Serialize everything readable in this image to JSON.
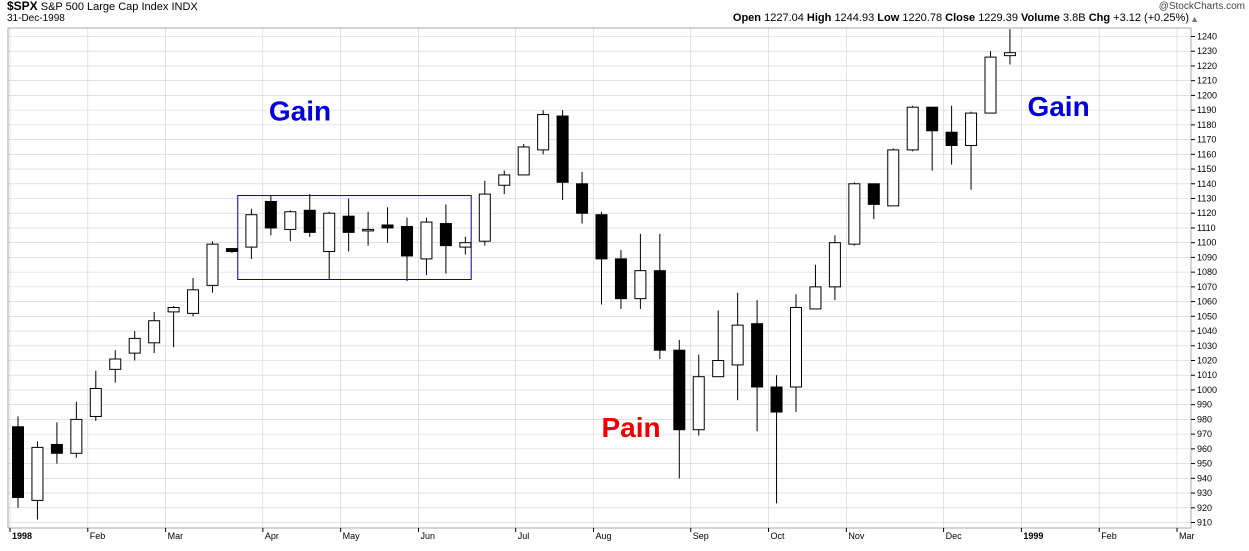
{
  "header": {
    "symbol": "$SPX",
    "name": "S&P 500 Large Cap Index",
    "exchange": "INDX",
    "date": "31-Dec-1998",
    "copyright": "@StockCharts.com",
    "open_label": "Open",
    "open": "1227.04",
    "high_label": "High",
    "high": "1244.93",
    "low_label": "Low",
    "low": "1220.78",
    "close_label": "Close",
    "close": "1229.39",
    "volume_label": "Volume",
    "volume": "3.8B",
    "chg_label": "Chg",
    "chg": "+3.12 (+0.25%)"
  },
  "colors": {
    "up_fill": "#ffffff",
    "down_fill": "#000000",
    "box": "#0000aa",
    "gain": "#0000dd",
    "pain": "#ee0000",
    "grid": "#d0d0d0"
  },
  "chart_data": {
    "type": "candlestick",
    "title": "$SPX S&P 500 Large Cap Index INDX",
    "interval": "weekly",
    "ylim": [
      910,
      1248
    ],
    "yticks": [
      910,
      920,
      930,
      940,
      950,
      960,
      970,
      980,
      990,
      1000,
      1010,
      1020,
      1030,
      1040,
      1050,
      1060,
      1070,
      1080,
      1090,
      1100,
      1110,
      1120,
      1130,
      1140,
      1150,
      1160,
      1170,
      1180,
      1190,
      1200,
      1210,
      1220,
      1230,
      1240
    ],
    "xlabels": [
      {
        "label": "1998",
        "week": 0,
        "bold": true
      },
      {
        "label": "Feb",
        "week": 4
      },
      {
        "label": "Mar",
        "week": 8
      },
      {
        "label": "Apr",
        "week": 13
      },
      {
        "label": "May",
        "week": 17
      },
      {
        "label": "Jun",
        "week": 21
      },
      {
        "label": "Jul",
        "week": 26
      },
      {
        "label": "Aug",
        "week": 30
      },
      {
        "label": "Sep",
        "week": 35
      },
      {
        "label": "Oct",
        "week": 39
      },
      {
        "label": "Nov",
        "week": 43
      },
      {
        "label": "Dec",
        "week": 48
      },
      {
        "label": "1999",
        "week": 52,
        "bold": true
      },
      {
        "label": "Feb",
        "week": 56
      },
      {
        "label": "Mar",
        "week": 60
      }
    ],
    "candles": [
      {
        "o": 975,
        "h": 982,
        "l": 920,
        "c": 927
      },
      {
        "o": 925,
        "h": 965,
        "l": 912,
        "c": 961
      },
      {
        "o": 963,
        "h": 978,
        "l": 950,
        "c": 957
      },
      {
        "o": 957,
        "h": 992,
        "l": 954,
        "c": 980
      },
      {
        "o": 982,
        "h": 1013,
        "l": 979,
        "c": 1001
      },
      {
        "o": 1014,
        "h": 1027,
        "l": 1005,
        "c": 1021
      },
      {
        "o": 1025,
        "h": 1040,
        "l": 1020,
        "c": 1035
      },
      {
        "o": 1032,
        "h": 1053,
        "l": 1025,
        "c": 1047
      },
      {
        "o": 1053,
        "h": 1057,
        "l": 1029,
        "c": 1056
      },
      {
        "o": 1052,
        "h": 1076,
        "l": 1050,
        "c": 1068
      },
      {
        "o": 1071,
        "h": 1101,
        "l": 1066,
        "c": 1099
      },
      {
        "o": 1096,
        "h": 1096,
        "l": 1093,
        "c": 1094
      },
      {
        "o": 1097,
        "h": 1123,
        "l": 1089,
        "c": 1119
      },
      {
        "o": 1128,
        "h": 1132,
        "l": 1105,
        "c": 1110
      },
      {
        "o": 1109,
        "h": 1122,
        "l": 1101,
        "c": 1121
      },
      {
        "o": 1122,
        "h": 1133,
        "l": 1104,
        "c": 1107
      },
      {
        "o": 1094,
        "h": 1121,
        "l": 1075,
        "c": 1120
      },
      {
        "o": 1118,
        "h": 1130,
        "l": 1094,
        "c": 1107
      },
      {
        "o": 1109,
        "h": 1121,
        "l": 1098,
        "c": 1109
      },
      {
        "o": 1112,
        "h": 1124,
        "l": 1100,
        "c": 1110
      },
      {
        "o": 1111,
        "h": 1117,
        "l": 1074,
        "c": 1091
      },
      {
        "o": 1089,
        "h": 1117,
        "l": 1078,
        "c": 1114
      },
      {
        "o": 1113,
        "h": 1126,
        "l": 1079,
        "c": 1098
      },
      {
        "o": 1097,
        "h": 1104,
        "l": 1092,
        "c": 1100
      },
      {
        "o": 1101,
        "h": 1142,
        "l": 1098,
        "c": 1133
      },
      {
        "o": 1139,
        "h": 1149,
        "l": 1133,
        "c": 1146
      },
      {
        "o": 1146,
        "h": 1167,
        "l": 1146,
        "c": 1165
      },
      {
        "o": 1163,
        "h": 1190,
        "l": 1160,
        "c": 1187
      },
      {
        "o": 1186,
        "h": 1190,
        "l": 1129,
        "c": 1141
      },
      {
        "o": 1140,
        "h": 1148,
        "l": 1113,
        "c": 1120
      },
      {
        "o": 1119,
        "h": 1121,
        "l": 1058,
        "c": 1089
      },
      {
        "o": 1089,
        "h": 1095,
        "l": 1055,
        "c": 1062
      },
      {
        "o": 1062,
        "h": 1106,
        "l": 1055,
        "c": 1081
      },
      {
        "o": 1081,
        "h": 1106,
        "l": 1021,
        "c": 1027
      },
      {
        "o": 1027,
        "h": 1034,
        "l": 940,
        "c": 973
      },
      {
        "o": 973,
        "h": 1024,
        "l": 969,
        "c": 1009
      },
      {
        "o": 1009,
        "h": 1054,
        "l": 1009,
        "c": 1020
      },
      {
        "o": 1017,
        "h": 1066,
        "l": 993,
        "c": 1044
      },
      {
        "o": 1045,
        "h": 1061,
        "l": 972,
        "c": 1002
      },
      {
        "o": 1002,
        "h": 1010,
        "l": 923,
        "c": 985
      },
      {
        "o": 1002,
        "h": 1065,
        "l": 985,
        "c": 1056
      },
      {
        "o": 1055,
        "h": 1085,
        "l": 1055,
        "c": 1070
      },
      {
        "o": 1070,
        "h": 1105,
        "l": 1061,
        "c": 1100
      },
      {
        "o": 1099,
        "h": 1141,
        "l": 1098,
        "c": 1140
      },
      {
        "o": 1140,
        "h": 1140,
        "l": 1116,
        "c": 1126
      },
      {
        "o": 1125,
        "h": 1164,
        "l": 1125,
        "c": 1163
      },
      {
        "o": 1163,
        "h": 1193,
        "l": 1162,
        "c": 1192
      },
      {
        "o": 1192,
        "h": 1192,
        "l": 1149,
        "c": 1176
      },
      {
        "o": 1175,
        "h": 1193,
        "l": 1153,
        "c": 1166
      },
      {
        "o": 1166,
        "h": 1189,
        "l": 1136,
        "c": 1188
      },
      {
        "o": 1188,
        "h": 1230,
        "l": 1188,
        "c": 1226
      },
      {
        "o": 1227,
        "h": 1245,
        "l": 1221,
        "c": 1229
      }
    ],
    "annotations": [
      {
        "text": "Gain",
        "week": 21.5,
        "value": 1183,
        "color": "#0000dd"
      },
      {
        "text": "Pain",
        "week": 50.0,
        "value": 968,
        "color": "#ee0000"
      },
      {
        "text": "Gain",
        "week": 86.5,
        "value": 1186,
        "color": "#0000dd"
      }
    ],
    "highlight_box": {
      "week_start": 11.3,
      "week_end": 23.3,
      "value_top": 1132,
      "value_bottom": 1075
    }
  }
}
